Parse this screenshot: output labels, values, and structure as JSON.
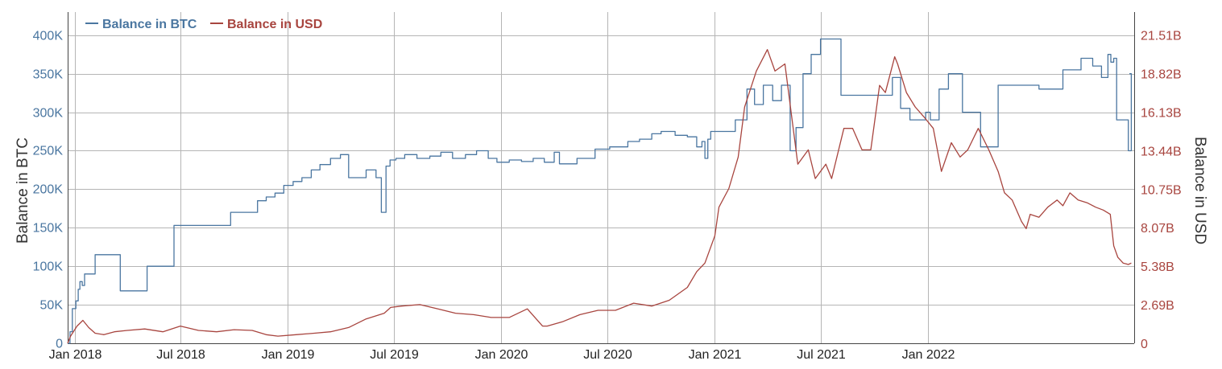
{
  "chart_data": {
    "type": "line",
    "title": "",
    "xlabel": "",
    "ylabel_left": "Balance in BTC",
    "ylabel_right": "Balance in USD",
    "x_tick_labels": [
      "Jan 2018",
      "Jul 2018",
      "Jan 2019",
      "Jul 2019",
      "Jan 2020",
      "Jul 2020",
      "Jan 2021",
      "Jul 2021",
      "Jan 2022"
    ],
    "x_tick_dates": [
      "2018-01-01",
      "2018-07-01",
      "2019-01-01",
      "2019-07-01",
      "2020-01-01",
      "2020-07-01",
      "2021-01-01",
      "2021-07-01",
      "2022-01-01"
    ],
    "x_range": [
      "2017-12-20",
      "2022-12-20"
    ],
    "left_axis": {
      "range": [
        0,
        430000
      ],
      "ticks": [
        0,
        50000,
        100000,
        150000,
        200000,
        250000,
        300000,
        350000,
        400000
      ],
      "tick_labels": [
        "0",
        "50K",
        "100K",
        "150K",
        "200K",
        "250K",
        "300K",
        "350K",
        "400K"
      ]
    },
    "right_axis": {
      "range": [
        0,
        23120000000
      ],
      "ticks": [
        0,
        2690000000,
        5380000000,
        8070000000,
        10750000000,
        13440000000,
        16130000000,
        18820000000,
        21510000000
      ],
      "tick_labels": [
        "0",
        "2.69B",
        "5.38B",
        "8.07B",
        "10.75B",
        "13.44B",
        "16.13B",
        "18.82B",
        "21.51B"
      ]
    },
    "grid": true,
    "legend_position": "top-left",
    "series": [
      {
        "name": "Balance in BTC",
        "axis": "left",
        "color": "#4a76a0",
        "step": true,
        "x": [
          "2017-12-20",
          "2017-12-24",
          "2017-12-28",
          "2018-01-03",
          "2018-01-07",
          "2018-01-10",
          "2018-01-14",
          "2018-01-18",
          "2018-02-05",
          "2018-02-15",
          "2018-03-20",
          "2018-05-05",
          "2018-05-20",
          "2018-06-20",
          "2018-09-25",
          "2018-10-20",
          "2018-11-10",
          "2018-11-25",
          "2018-12-10",
          "2018-12-25",
          "2019-01-10",
          "2019-01-25",
          "2019-02-10",
          "2019-02-25",
          "2019-03-15",
          "2019-04-01",
          "2019-04-15",
          "2019-05-15",
          "2019-06-01",
          "2019-06-10",
          "2019-06-18",
          "2019-06-25",
          "2019-07-05",
          "2019-07-20",
          "2019-08-10",
          "2019-09-01",
          "2019-09-20",
          "2019-10-10",
          "2019-11-01",
          "2019-11-20",
          "2019-12-10",
          "2019-12-25",
          "2020-01-15",
          "2020-02-05",
          "2020-02-25",
          "2020-03-15",
          "2020-04-01",
          "2020-04-10",
          "2020-05-10",
          "2020-06-10",
          "2020-07-05",
          "2020-08-05",
          "2020-08-25",
          "2020-09-15",
          "2020-10-01",
          "2020-10-25",
          "2020-11-15",
          "2020-12-01",
          "2020-12-10",
          "2020-12-15",
          "2020-12-20",
          "2020-12-25",
          "2021-01-15",
          "2021-02-05",
          "2021-02-25",
          "2021-03-10",
          "2021-03-25",
          "2021-04-10",
          "2021-04-25",
          "2021-05-10",
          "2021-05-20",
          "2021-06-01",
          "2021-06-15",
          "2021-07-01",
          "2021-07-15",
          "2021-07-25",
          "2021-08-05",
          "2021-08-25",
          "2021-10-15",
          "2021-11-01",
          "2021-11-15",
          "2021-12-01",
          "2021-12-20",
          "2021-12-28",
          "2022-01-05",
          "2022-01-20",
          "2022-02-05",
          "2022-03-01",
          "2022-04-01",
          "2022-05-01",
          "2022-06-01",
          "2022-06-20",
          "2022-07-10",
          "2022-08-01",
          "2022-08-20",
          "2022-09-20",
          "2022-10-10",
          "2022-10-25",
          "2022-11-05",
          "2022-11-10",
          "2022-11-15",
          "2022-11-20",
          "2022-12-10",
          "2022-12-15"
        ],
        "values": [
          0,
          15000,
          45000,
          55000,
          70000,
          80000,
          75000,
          90000,
          115000,
          115000,
          68000,
          100000,
          100000,
          153000,
          170000,
          170000,
          185000,
          190000,
          195000,
          205000,
          210000,
          215000,
          225000,
          232000,
          240000,
          245000,
          215000,
          225000,
          215000,
          170000,
          230000,
          238000,
          240000,
          245000,
          240000,
          243000,
          248000,
          240000,
          245000,
          250000,
          240000,
          235000,
          238000,
          236000,
          240000,
          235000,
          248000,
          233000,
          240000,
          252000,
          255000,
          262000,
          265000,
          272000,
          275000,
          270000,
          268000,
          255000,
          262000,
          240000,
          265000,
          275000,
          275000,
          290000,
          330000,
          310000,
          335000,
          315000,
          335000,
          250000,
          280000,
          350000,
          375000,
          395000,
          395000,
          395000,
          322000,
          322000,
          322000,
          345000,
          305000,
          290000,
          290000,
          300000,
          290000,
          330000,
          350000,
          300000,
          255000,
          335000,
          335000,
          335000,
          330000,
          330000,
          355000,
          370000,
          360000,
          345000,
          375000,
          365000,
          370000,
          290000,
          250000,
          350000
        ]
      },
      {
        "name": "Balance in USD",
        "axis": "right",
        "color": "#a8453f",
        "step": false,
        "x": [
          "2017-12-20",
          "2017-12-25",
          "2018-01-05",
          "2018-01-15",
          "2018-01-25",
          "2018-02-05",
          "2018-02-20",
          "2018-03-10",
          "2018-04-01",
          "2018-05-01",
          "2018-06-01",
          "2018-07-01",
          "2018-08-01",
          "2018-09-01",
          "2018-10-01",
          "2018-11-01",
          "2018-11-25",
          "2018-12-15",
          "2019-01-15",
          "2019-02-15",
          "2019-03-15",
          "2019-04-15",
          "2019-05-15",
          "2019-06-15",
          "2019-06-26",
          "2019-07-15",
          "2019-08-15",
          "2019-09-15",
          "2019-10-15",
          "2019-11-15",
          "2019-12-15",
          "2020-01-15",
          "2020-02-15",
          "2020-03-12",
          "2020-03-20",
          "2020-04-15",
          "2020-05-15",
          "2020-06-15",
          "2020-07-15",
          "2020-08-15",
          "2020-09-15",
          "2020-10-15",
          "2020-11-15",
          "2020-12-01",
          "2020-12-15",
          "2021-01-01",
          "2021-01-08",
          "2021-01-25",
          "2021-02-10",
          "2021-02-21",
          "2021-03-13",
          "2021-04-01",
          "2021-04-14",
          "2021-05-01",
          "2021-05-12",
          "2021-05-23",
          "2021-06-10",
          "2021-06-22",
          "2021-07-10",
          "2021-07-20",
          "2021-08-10",
          "2021-08-25",
          "2021-09-10",
          "2021-09-25",
          "2021-10-10",
          "2021-10-20",
          "2021-11-05",
          "2021-11-10",
          "2021-11-25",
          "2021-12-10",
          "2021-12-25",
          "2022-01-10",
          "2022-01-24",
          "2022-02-10",
          "2022-02-25",
          "2022-03-10",
          "2022-03-28",
          "2022-04-15",
          "2022-05-01",
          "2022-05-12",
          "2022-05-25",
          "2022-06-10",
          "2022-06-18",
          "2022-06-25",
          "2022-07-10",
          "2022-07-25",
          "2022-08-10",
          "2022-08-20",
          "2022-09-01",
          "2022-09-15",
          "2022-10-01",
          "2022-10-15",
          "2022-10-28",
          "2022-11-05",
          "2022-11-09",
          "2022-11-15",
          "2022-11-22",
          "2022-12-01",
          "2022-12-10",
          "2022-12-15"
        ],
        "values": [
          0,
          500000000,
          1200000000,
          1600000000,
          1100000000,
          700000000,
          600000000,
          800000000,
          900000000,
          1000000000,
          800000000,
          1200000000,
          900000000,
          800000000,
          950000000,
          900000000,
          600000000,
          500000000,
          600000000,
          700000000,
          800000000,
          1100000000,
          1700000000,
          2100000000,
          2500000000,
          2600000000,
          2700000000,
          2400000000,
          2100000000,
          2000000000,
          1800000000,
          1800000000,
          2400000000,
          1200000000,
          1200000000,
          1500000000,
          2000000000,
          2300000000,
          2300000000,
          2800000000,
          2600000000,
          3000000000,
          3900000000,
          5000000000,
          5600000000,
          7500000000,
          9500000000,
          10800000000,
          13000000000,
          16500000000,
          19000000000,
          20500000000,
          19000000000,
          19500000000,
          16000000000,
          12500000000,
          13500000000,
          11500000000,
          12500000000,
          11500000000,
          15000000000,
          15000000000,
          13500000000,
          13500000000,
          18000000000,
          17500000000,
          20000000000,
          19500000000,
          17500000000,
          16500000000,
          15800000000,
          15000000000,
          12000000000,
          14000000000,
          13000000000,
          13500000000,
          15000000000,
          13500000000,
          12000000000,
          10500000000,
          10000000000,
          8500000000,
          8000000000,
          9000000000,
          8800000000,
          9500000000,
          10000000000,
          9600000000,
          10500000000,
          10000000000,
          9800000000,
          9500000000,
          9300000000,
          9100000000,
          9000000000,
          6800000000,
          6000000000,
          5600000000,
          5500000000,
          5600000000
        ]
      }
    ]
  }
}
